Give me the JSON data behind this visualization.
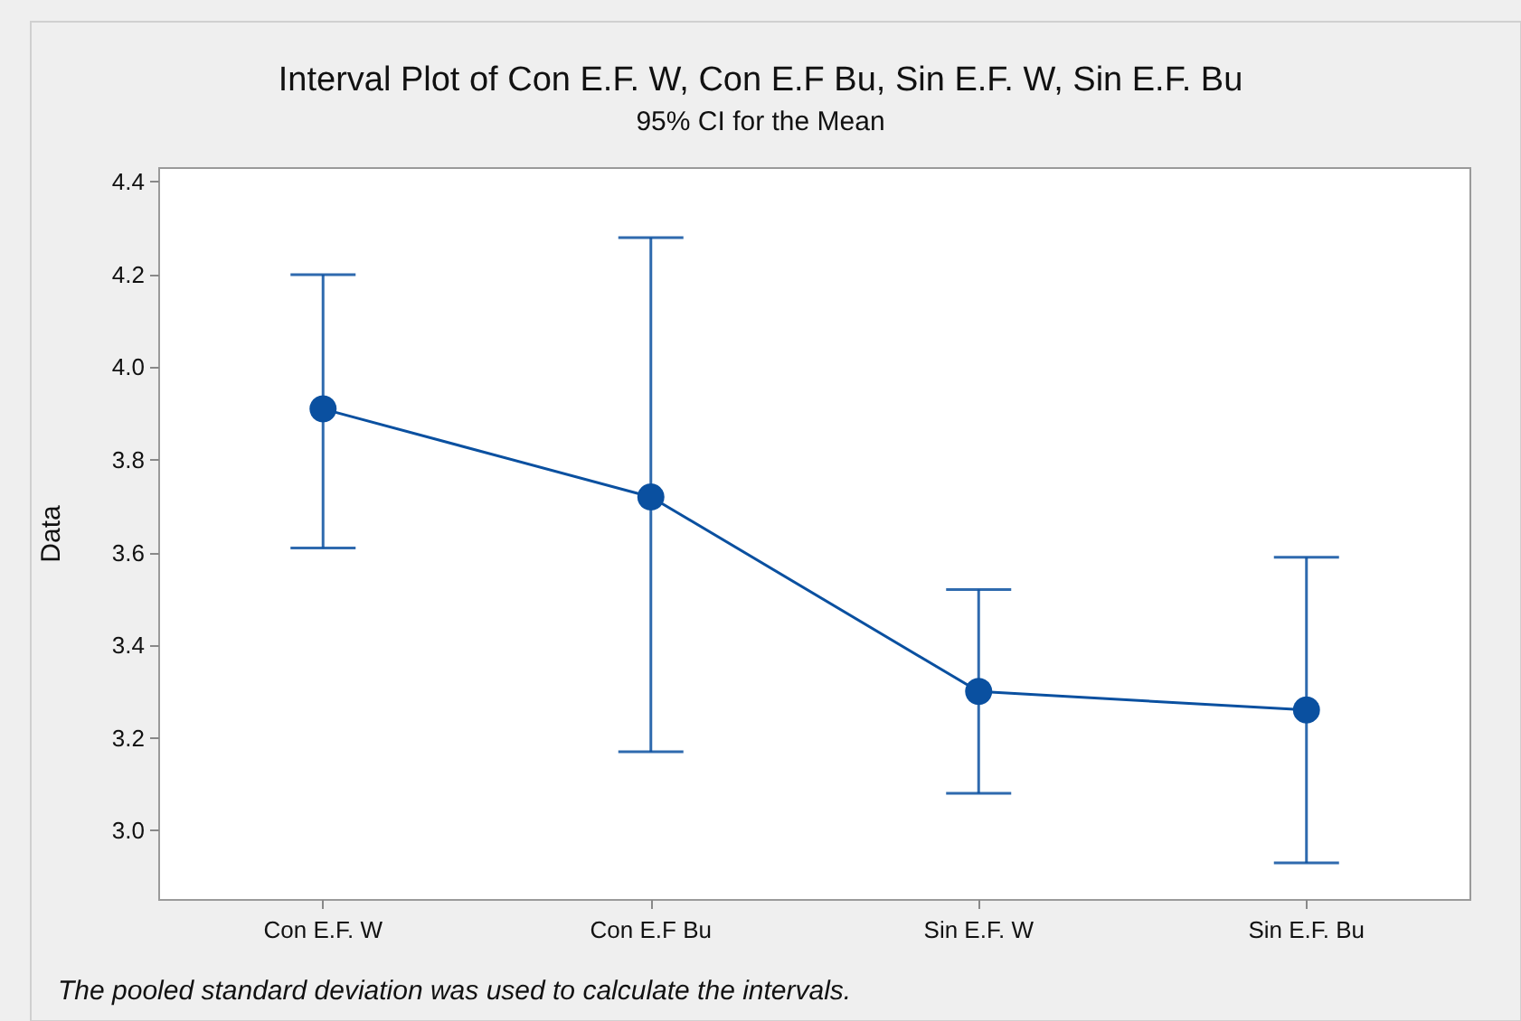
{
  "chart_data": {
    "type": "line",
    "title": "Interval Plot of Con E.F. W, Con E.F Bu, Sin E.F. W, Sin E.F. Bu",
    "subtitle": "95% CI for the Mean",
    "ylabel": "Data",
    "categories": [
      "Con E.F. W",
      "Con E.F Bu",
      "Sin E.F. W",
      "Sin E.F. Bu"
    ],
    "series": [
      {
        "color": "#0a50a0",
        "values": [
          3.91,
          3.72,
          3.3,
          3.26
        ],
        "errors": [
          [
            3.61,
            4.2
          ],
          [
            3.17,
            4.28
          ],
          [
            3.08,
            3.52
          ],
          [
            2.93,
            3.59
          ]
        ]
      }
    ],
    "ylim": [
      2.85,
      4.43
    ],
    "yticks": [
      {
        "value": 3,
        "label": "3.0"
      },
      3.2,
      3.4,
      3.6,
      3.8,
      {
        "value": 4,
        "label": "4.0"
      },
      4.2,
      4.4
    ],
    "marker": "circle",
    "line_style": "solid",
    "grid": false,
    "annotations": [
      "The pooled standard deviation was used to calculate the intervals."
    ]
  }
}
